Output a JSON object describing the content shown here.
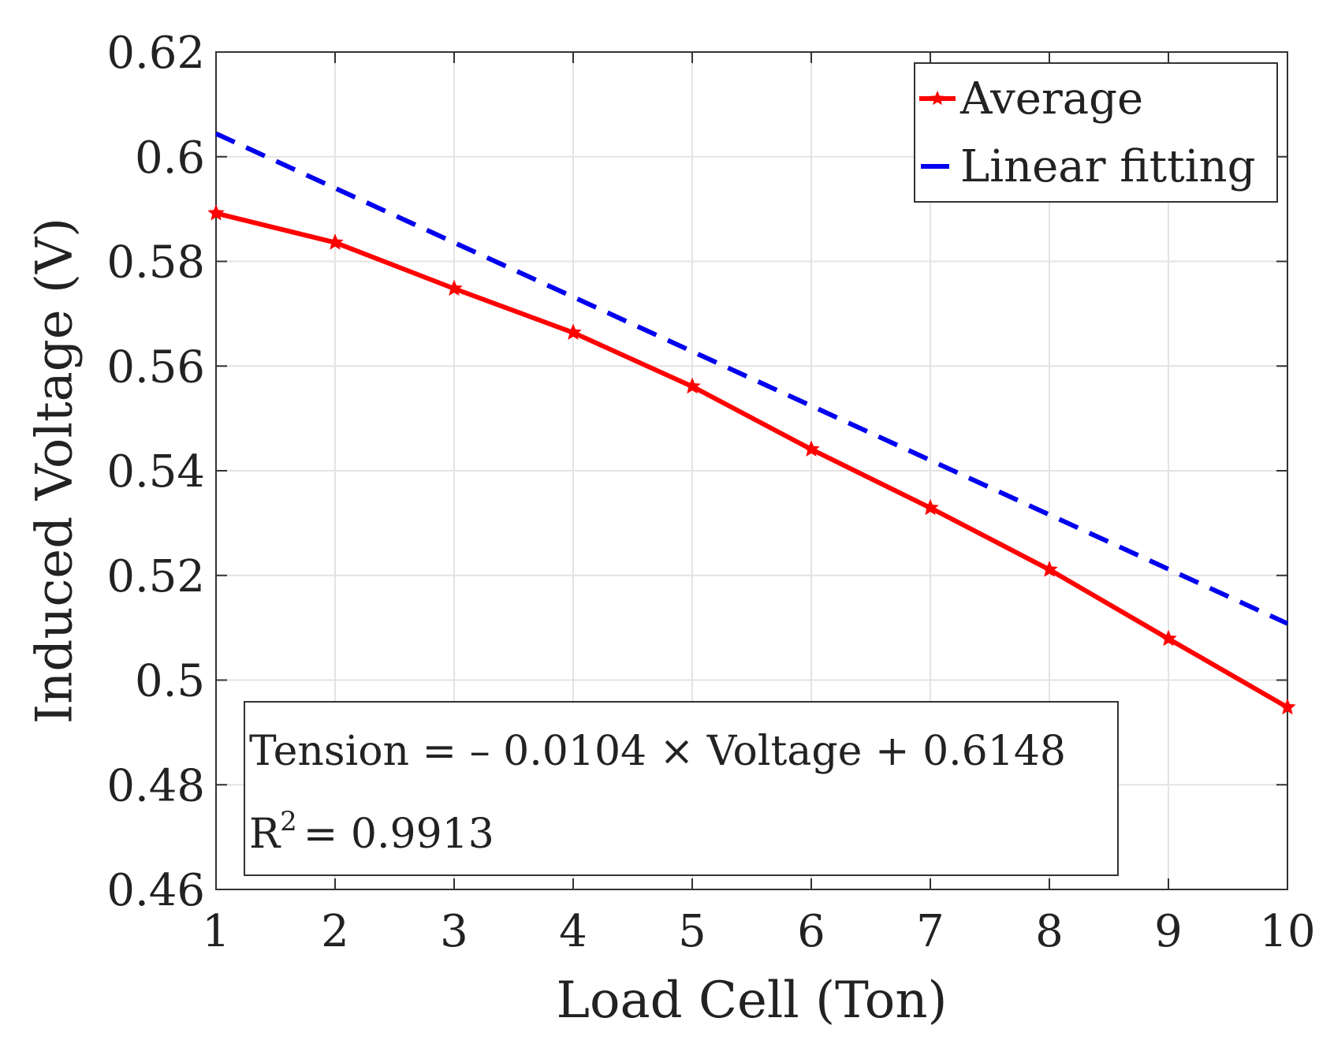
{
  "chart_data": {
    "type": "line",
    "title": "",
    "xlabel": "Load Cell (Ton)",
    "ylabel": "Induced Voltage (V)",
    "xlim": [
      1,
      10
    ],
    "ylim": [
      0.46,
      0.62
    ],
    "grid": true,
    "x": [
      1,
      2,
      3,
      4,
      5,
      6,
      7,
      8,
      9,
      10
    ],
    "x_ticks": [
      "1",
      "2",
      "3",
      "4",
      "5",
      "6",
      "7",
      "8",
      "9",
      "10"
    ],
    "y_ticks": [
      "0.46",
      "0.48",
      "0.5",
      "0.52",
      "0.54",
      "0.56",
      "0.58",
      "0.6",
      "0.62"
    ],
    "series": [
      {
        "name": "Average",
        "style": "solid-star",
        "color": "#ff0000",
        "values": [
          0.5892,
          0.5836,
          0.5748,
          0.5664,
          0.5561,
          0.5441,
          0.5329,
          0.5211,
          0.5079,
          0.4948
        ]
      },
      {
        "name": "Linear fitting",
        "style": "dashed",
        "color": "#0000ee",
        "values": [
          0.6044,
          0.594,
          0.5836,
          0.5732,
          0.5628,
          0.5524,
          0.542,
          0.5316,
          0.5212,
          0.5108
        ]
      }
    ],
    "legend": {
      "position": "top-right",
      "entries": [
        "Average",
        "Linear fitting"
      ]
    },
    "annotation": {
      "position": "bottom-left",
      "equation": "Tension = – 0.0104 × Voltage + 0.6148",
      "r2_label": "R",
      "r2_sup": "2",
      "r2_value": "= 0.9913"
    }
  }
}
